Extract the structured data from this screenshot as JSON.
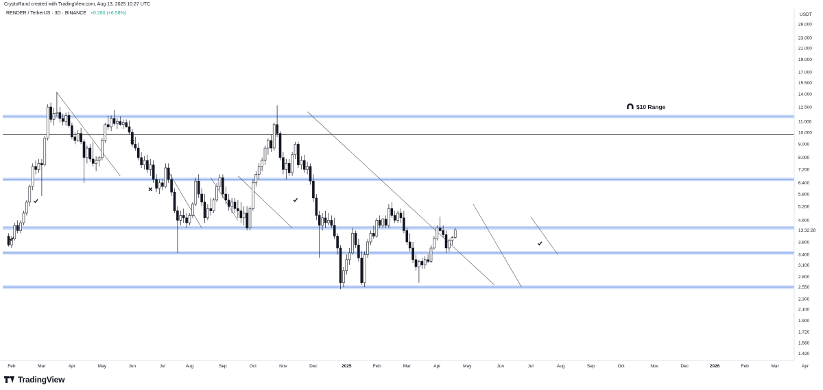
{
  "header": {
    "credit": "CryptoRand created with TradingView.com, Aug 13, 2025 10:27 UTC",
    "symbol": "RENDER / TetherUS · 3D · BINANCE",
    "change": "+0.260 (+6.58%)"
  },
  "footer": {
    "brand": "TradingView"
  },
  "colors": {
    "up": "#ffffff",
    "down": "#131722",
    "zone": "#b9cef5",
    "zone_core": "#6f97e6",
    "line": "#333333",
    "change": "#22ab94"
  },
  "chart_data": {
    "type": "candlestick",
    "y_scale": "log",
    "y_unit": "USDT",
    "ylim": [
      1.3,
      30
    ],
    "y_ticks": [
      26.0,
      23.0,
      21.0,
      19.0,
      17.0,
      15.5,
      14.0,
      12.5,
      11.0,
      10.0,
      9.0,
      8.0,
      7.2,
      6.4,
      5.8,
      5.2,
      4.6,
      3.8,
      3.4,
      3.1,
      2.8,
      2.55,
      2.3,
      2.1,
      1.9,
      1.72,
      1.56,
      1.42
    ],
    "y_tick_labels": [
      "26.000",
      "23.000",
      "21.000",
      "19.000",
      "17.000",
      "15.500",
      "14.000",
      "12.500",
      "11.000",
      "10.000",
      "9.000",
      "8.000",
      "7.200",
      "6.400",
      "5.800",
      "5.200",
      "4.600",
      "3.800",
      "3.400",
      "3.100",
      "2.800",
      "2.550",
      "2.300",
      "2.100",
      "1.900",
      "1.720",
      "1.560",
      "1.420"
    ],
    "price_tag": "13:32:28",
    "x_labels": [
      "Feb",
      "Mar",
      "Apr",
      "May",
      "Jun",
      "Jul",
      "Aug",
      "Sep",
      "Oct",
      "Nov",
      "Dec",
      "2025",
      "Feb",
      "Mar",
      "Apr",
      "May",
      "Jun",
      "Jul",
      "Aug",
      "Sep",
      "Oct",
      "Nov",
      "Dec",
      "2026",
      "Feb",
      "Mar",
      "Apr"
    ],
    "x_bold": [
      false,
      false,
      false,
      false,
      false,
      false,
      false,
      false,
      false,
      false,
      false,
      true,
      false,
      false,
      false,
      false,
      false,
      false,
      false,
      false,
      false,
      false,
      false,
      true,
      false,
      false,
      false
    ],
    "x_index": [
      1,
      11,
      21,
      31,
      41,
      51,
      60,
      71,
      81,
      91,
      101,
      112,
      122,
      132,
      142,
      152,
      163,
      173,
      183,
      193,
      203,
      214,
      224,
      234,
      244,
      254,
      264
    ],
    "candles": [
      [
        4.0,
        4.1,
        3.65,
        3.7
      ],
      [
        3.7,
        4.0,
        3.6,
        3.9
      ],
      [
        3.9,
        4.5,
        3.85,
        4.4
      ],
      [
        4.4,
        4.6,
        4.1,
        4.2
      ],
      [
        4.2,
        4.6,
        4.1,
        4.5
      ],
      [
        4.5,
        5.0,
        4.4,
        4.9
      ],
      [
        4.9,
        5.5,
        4.8,
        5.4
      ],
      [
        5.4,
        6.3,
        5.2,
        6.2
      ],
      [
        6.2,
        7.6,
        6.0,
        7.4
      ],
      [
        7.4,
        7.8,
        6.9,
        7.2
      ],
      [
        7.2,
        7.9,
        7.0,
        7.6
      ],
      [
        7.6,
        7.9,
        5.7,
        7.5
      ],
      [
        7.5,
        9.7,
        7.4,
        9.5
      ],
      [
        9.5,
        12.8,
        9.3,
        12.5
      ],
      [
        12.5,
        13.0,
        10.9,
        11.2
      ],
      [
        11.2,
        12.4,
        10.6,
        11.8
      ],
      [
        11.8,
        14.3,
        11.5,
        11.9
      ],
      [
        11.9,
        12.5,
        10.9,
        11.3
      ],
      [
        11.3,
        11.8,
        10.6,
        11.0
      ],
      [
        11.0,
        11.9,
        10.6,
        11.6
      ],
      [
        11.6,
        12.0,
        10.4,
        10.6
      ],
      [
        10.6,
        10.9,
        9.4,
        9.6
      ],
      [
        9.6,
        10.0,
        9.0,
        9.3
      ],
      [
        9.3,
        10.2,
        9.2,
        9.9
      ],
      [
        9.9,
        10.4,
        9.0,
        9.2
      ],
      [
        9.2,
        9.4,
        6.4,
        8.0
      ],
      [
        8.0,
        8.9,
        7.6,
        8.7
      ],
      [
        8.7,
        9.0,
        7.7,
        7.9
      ],
      [
        7.9,
        9.2,
        7.4,
        7.6
      ],
      [
        7.6,
        8.1,
        7.1,
        7.8
      ],
      [
        7.8,
        8.1,
        7.4,
        8.0
      ],
      [
        8.0,
        9.5,
        7.8,
        9.3
      ],
      [
        9.3,
        10.9,
        9.1,
        10.7
      ],
      [
        10.7,
        11.6,
        10.2,
        10.5
      ],
      [
        10.5,
        11.6,
        10.1,
        11.3
      ],
      [
        11.3,
        12.2,
        10.6,
        10.8
      ],
      [
        10.8,
        11.3,
        10.3,
        11.0
      ],
      [
        11.0,
        11.5,
        10.6,
        10.7
      ],
      [
        10.7,
        11.2,
        10.3,
        10.9
      ],
      [
        10.9,
        11.2,
        10.4,
        10.5
      ],
      [
        10.5,
        11.1,
        9.8,
        10.0
      ],
      [
        10.0,
        10.3,
        8.8,
        9.0
      ],
      [
        9.0,
        9.6,
        8.5,
        8.7
      ],
      [
        8.7,
        9.1,
        7.8,
        8.0
      ],
      [
        8.0,
        8.4,
        7.3,
        7.5
      ],
      [
        7.5,
        8.1,
        7.2,
        7.8
      ],
      [
        7.8,
        8.2,
        7.0,
        7.2
      ],
      [
        7.2,
        7.9,
        6.8,
        7.5
      ],
      [
        7.5,
        7.8,
        6.4,
        6.6
      ],
      [
        6.6,
        6.9,
        5.9,
        6.1
      ],
      [
        6.1,
        6.6,
        5.8,
        6.4
      ],
      [
        6.4,
        6.6,
        6.0,
        6.2
      ],
      [
        6.2,
        7.6,
        6.1,
        7.3
      ],
      [
        7.3,
        7.6,
        6.4,
        6.6
      ],
      [
        6.6,
        6.9,
        5.7,
        5.9
      ],
      [
        5.9,
        6.1,
        4.9,
        5.0
      ],
      [
        5.0,
        5.2,
        3.45,
        4.6
      ],
      [
        4.6,
        5.0,
        4.4,
        4.8
      ],
      [
        4.8,
        5.1,
        4.5,
        4.7
      ],
      [
        4.7,
        4.9,
        4.3,
        4.5
      ],
      [
        4.5,
        4.9,
        4.4,
        4.8
      ],
      [
        4.8,
        5.4,
        4.7,
        5.3
      ],
      [
        5.3,
        6.7,
        5.2,
        6.5
      ],
      [
        6.5,
        6.9,
        5.6,
        5.8
      ],
      [
        5.8,
        6.1,
        5.2,
        5.4
      ],
      [
        5.4,
        5.8,
        4.5,
        4.7
      ],
      [
        4.7,
        5.3,
        4.6,
        5.1
      ],
      [
        5.1,
        5.6,
        4.8,
        5.0
      ],
      [
        5.0,
        5.6,
        4.9,
        5.5
      ],
      [
        5.5,
        6.4,
        5.4,
        6.2
      ],
      [
        6.2,
        6.9,
        6.0,
        6.7
      ],
      [
        6.7,
        6.9,
        5.6,
        5.8
      ],
      [
        5.8,
        6.2,
        5.3,
        5.5
      ],
      [
        5.5,
        5.8,
        5.0,
        5.2
      ],
      [
        5.2,
        5.6,
        4.9,
        5.4
      ],
      [
        5.4,
        5.6,
        4.9,
        5.1
      ],
      [
        5.1,
        5.5,
        4.7,
        5.0
      ],
      [
        5.0,
        5.4,
        4.5,
        4.7
      ],
      [
        4.7,
        5.2,
        4.4,
        4.9
      ],
      [
        4.9,
        5.2,
        4.2,
        4.3
      ],
      [
        4.3,
        5.2,
        4.2,
        5.1
      ],
      [
        5.1,
        6.6,
        5.0,
        6.4
      ],
      [
        6.4,
        7.1,
        6.2,
        6.9
      ],
      [
        6.9,
        7.6,
        6.6,
        7.4
      ],
      [
        7.4,
        8.0,
        7.1,
        7.8
      ],
      [
        7.8,
        8.9,
        7.5,
        8.7
      ],
      [
        8.7,
        9.5,
        8.2,
        9.3
      ],
      [
        9.3,
        9.8,
        8.4,
        8.7
      ],
      [
        8.7,
        10.9,
        8.5,
        10.7
      ],
      [
        10.7,
        12.7,
        9.6,
        9.9
      ],
      [
        9.9,
        10.1,
        7.8,
        8.0
      ],
      [
        8.0,
        8.4,
        6.9,
        7.2
      ],
      [
        7.2,
        7.9,
        6.6,
        7.6
      ],
      [
        7.6,
        7.9,
        6.8,
        7.0
      ],
      [
        7.0,
        8.4,
        6.8,
        8.2
      ],
      [
        8.2,
        9.2,
        7.9,
        9.0
      ],
      [
        9.0,
        9.2,
        7.3,
        7.5
      ],
      [
        7.5,
        8.1,
        7.2,
        7.8
      ],
      [
        7.8,
        8.2,
        7.0,
        7.2
      ],
      [
        7.2,
        7.7,
        6.9,
        7.4
      ],
      [
        7.4,
        7.6,
        6.3,
        6.5
      ],
      [
        6.5,
        6.9,
        5.4,
        5.6
      ],
      [
        5.6,
        5.8,
        4.6,
        4.8
      ],
      [
        4.8,
        5.0,
        3.3,
        4.4
      ],
      [
        4.4,
        4.9,
        4.2,
        4.7
      ],
      [
        4.7,
        5.0,
        4.3,
        4.5
      ],
      [
        4.5,
        4.9,
        4.4,
        4.6
      ],
      [
        4.6,
        4.8,
        4.3,
        4.4
      ],
      [
        4.4,
        4.7,
        3.9,
        4.0
      ],
      [
        4.0,
        4.1,
        3.4,
        3.6
      ],
      [
        3.6,
        3.7,
        2.5,
        2.65
      ],
      [
        2.65,
        3.05,
        2.55,
        2.95
      ],
      [
        2.95,
        3.4,
        2.85,
        3.25
      ],
      [
        3.25,
        3.6,
        3.1,
        3.45
      ],
      [
        3.45,
        4.3,
        3.4,
        4.1
      ],
      [
        4.1,
        4.2,
        3.6,
        3.7
      ],
      [
        3.7,
        3.9,
        3.2,
        3.3
      ],
      [
        3.3,
        3.5,
        2.6,
        2.65
      ],
      [
        2.65,
        3.5,
        2.55,
        3.4
      ],
      [
        3.4,
        3.9,
        3.3,
        3.8
      ],
      [
        3.8,
        4.2,
        3.7,
        4.1
      ],
      [
        4.1,
        4.4,
        3.9,
        4.0
      ],
      [
        4.0,
        4.7,
        3.95,
        4.6
      ],
      [
        4.6,
        4.8,
        4.3,
        4.4
      ],
      [
        4.4,
        4.7,
        4.3,
        4.65
      ],
      [
        4.65,
        4.8,
        4.3,
        4.4
      ],
      [
        4.4,
        5.3,
        4.3,
        5.1
      ],
      [
        5.1,
        5.4,
        4.7,
        4.8
      ],
      [
        4.8,
        5.0,
        4.5,
        4.6
      ],
      [
        4.6,
        5.0,
        4.5,
        4.9
      ],
      [
        4.9,
        5.1,
        4.5,
        4.7
      ],
      [
        4.7,
        5.0,
        4.1,
        4.2
      ],
      [
        4.2,
        4.3,
        3.7,
        3.8
      ],
      [
        3.8,
        4.1,
        3.5,
        3.6
      ],
      [
        3.6,
        3.8,
        3.15,
        3.25
      ],
      [
        3.25,
        3.4,
        2.95,
        3.05
      ],
      [
        3.05,
        3.25,
        2.65,
        3.2
      ],
      [
        3.2,
        3.3,
        3.0,
        3.1
      ],
      [
        3.1,
        3.35,
        3.0,
        3.25
      ],
      [
        3.25,
        3.4,
        3.15,
        3.2
      ],
      [
        3.2,
        3.7,
        3.15,
        3.6
      ],
      [
        3.6,
        4.0,
        3.55,
        3.9
      ],
      [
        3.9,
        4.4,
        3.85,
        4.3
      ],
      [
        4.3,
        4.75,
        4.15,
        4.2
      ],
      [
        4.2,
        4.4,
        3.95,
        4.05
      ],
      [
        4.05,
        4.2,
        3.45,
        3.6
      ],
      [
        3.6,
        3.9,
        3.5,
        3.85
      ],
      [
        3.85,
        4.0,
        3.7,
        3.95
      ],
      [
        3.95,
        4.3,
        3.9,
        4.22
      ]
    ],
    "zones": [
      {
        "price": 11.5,
        "style": "band"
      },
      {
        "price": 9.8,
        "style": "line"
      },
      {
        "price": 6.6,
        "style": "band"
      },
      {
        "price": 4.3,
        "style": "band"
      },
      {
        "price": 3.45,
        "style": "band"
      },
      {
        "price": 2.55,
        "style": "band"
      }
    ],
    "trendlines": [
      {
        "p1": [
          16,
          14.2
        ],
        "p2": [
          37,
          6.8
        ]
      },
      {
        "p1": [
          52,
          7.4
        ],
        "p2": [
          64,
          4.3
        ]
      },
      {
        "p1": [
          67,
          6.7
        ],
        "p2": [
          76,
          4.6
        ]
      },
      {
        "p1": [
          76,
          6.8
        ],
        "p2": [
          94,
          4.3
        ]
      },
      {
        "p1": [
          99,
          12.0
        ],
        "p2": [
          161,
          2.6
        ]
      },
      {
        "p1": [
          154,
          5.3
        ],
        "p2": [
          170,
          2.55
        ]
      },
      {
        "p1": [
          173,
          4.75
        ],
        "p2": [
          182,
          3.4
        ]
      }
    ],
    "marks": [
      {
        "type": "check",
        "index": 1,
        "price": 3.9
      },
      {
        "type": "check",
        "index": 9,
        "price": 5.45
      },
      {
        "type": "cross",
        "index": 41,
        "price": 9.2
      },
      {
        "type": "cross",
        "index": 47,
        "price": 6.05
      },
      {
        "type": "check",
        "index": 95,
        "price": 5.5
      },
      {
        "type": "check",
        "index": 176,
        "price": 3.75
      }
    ],
    "annotations": [
      {
        "text": "$10 Range",
        "icon": "magnet-icon",
        "index": 206,
        "price": 12.5
      }
    ]
  }
}
